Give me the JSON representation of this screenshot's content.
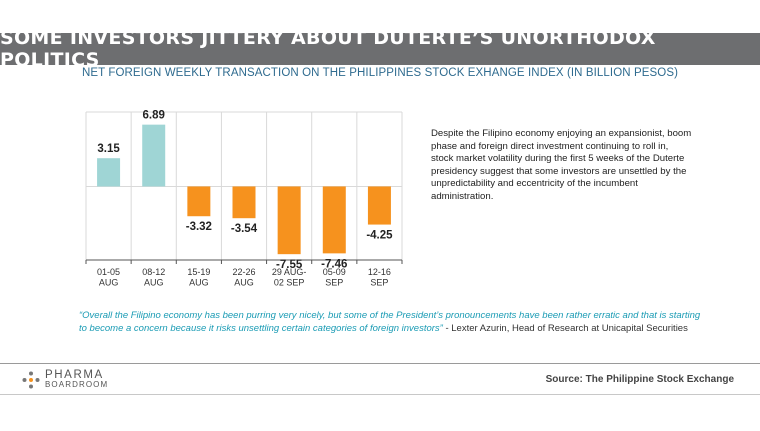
{
  "header": {
    "title": "SOME INVESTORS JITTERY ABOUT DUTERTE’S UNORTHODOX POLITICS",
    "subtitle": "NET FOREIGN WEEKLY TRANSACTION ON THE PHILIPPINES STOCK EXHANGE INDEX (IN BILLION PESOS)"
  },
  "chart_data": {
    "type": "bar",
    "categories": [
      [
        "01-05",
        "AUG"
      ],
      [
        "08-12",
        "AUG"
      ],
      [
        "15-19",
        "AUG"
      ],
      [
        "22-26",
        "AUG"
      ],
      [
        "29 AUG-",
        "02 SEP"
      ],
      [
        "05-09",
        "SEP"
      ],
      [
        "12-16",
        "SEP"
      ]
    ],
    "values": [
      3.15,
      6.89,
      -3.32,
      -3.54,
      -7.55,
      -7.46,
      -4.25
    ],
    "value_labels": [
      "3.15",
      "6.89",
      "-3.32",
      "-3.54",
      "-7.55",
      "-7.46",
      "-4.25"
    ],
    "ylim": [
      -8.2,
      8.3
    ],
    "grid": true,
    "colors": {
      "positive": "#9fd5d5",
      "negative": "#f6921e",
      "grid": "#d9d9d9"
    }
  },
  "description": "Despite the Filipino economy enjoying an expansionist, boom phase and foreign direct investment continuing to roll in, stock market volatility during the first 5 weeks of the Duterte presidency suggest that some investors are unsettled by the unpredictability and eccentricity of the incumbent administration.",
  "quote": {
    "text": "“Overall the Filipino economy has been purring very nicely, but some of the President’s pronouncements have been rather erratic and that is starting to become a concern because it risks unsettling certain categories of foreign investors”",
    "attribution": " -  Lexter Azurin, Head of Research at Unicapital Securities"
  },
  "footer": {
    "logo_line1": "PHARMA",
    "logo_line2": "BOARDROOM",
    "logo_icon": "dots-logo-icon",
    "source": "Source: The Philippine Stock Exchange"
  }
}
